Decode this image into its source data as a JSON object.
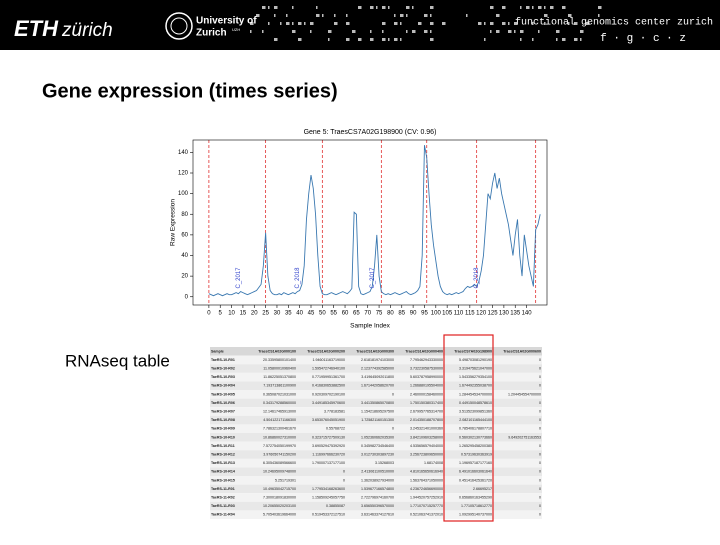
{
  "header": {
    "logo": "ETH",
    "logo_suffix": "zürich",
    "university": "University of",
    "university2": "Zurich",
    "university_sup": "UZH",
    "center": "functional genomics center zurich",
    "center_short": "f · g · c · z"
  },
  "title": "Gene expression (times series)",
  "chart_data": {
    "type": "line",
    "title": "Gene 5: TraesCS7A02G198900 (CV: 0.96)",
    "x_label": "Sample Index",
    "y_label": "Raw Expression",
    "color": "#3a78b0",
    "vline_color": "#e03030",
    "values": [
      3,
      2,
      1,
      2,
      3,
      2,
      1,
      2,
      3,
      2,
      2,
      3,
      4,
      3,
      5,
      4,
      3,
      2,
      3,
      4,
      5,
      6,
      9,
      12,
      30,
      62,
      20,
      6,
      3,
      2,
      2,
      3,
      2,
      4,
      3,
      2,
      3,
      4,
      3,
      5,
      6,
      12,
      30,
      75,
      100,
      118,
      105,
      80,
      40,
      10,
      3,
      2,
      2,
      3,
      4,
      3,
      2,
      3,
      4,
      5,
      4,
      3,
      5,
      8,
      82,
      80,
      10,
      3,
      2,
      3,
      4,
      5,
      10,
      30,
      60,
      20,
      5,
      3,
      2,
      3,
      2,
      3,
      4,
      3,
      2,
      3,
      4,
      5,
      3,
      2,
      3,
      4,
      6,
      10,
      40,
      147,
      135,
      100,
      70,
      50,
      35,
      20,
      10,
      5,
      3,
      2,
      3,
      2,
      3,
      4,
      3,
      4,
      5,
      8,
      10,
      9,
      10,
      12,
      10,
      15,
      25,
      40,
      70,
      100,
      95,
      110,
      120,
      105,
      115,
      100,
      90,
      80,
      70,
      55,
      40,
      60,
      75,
      40,
      20,
      60,
      45,
      30,
      20,
      10,
      65,
      70,
      80
    ],
    "xlim": [
      -7,
      149
    ],
    "ylim": [
      -8,
      152
    ],
    "xticks": [
      0,
      5,
      10,
      15,
      20,
      25,
      30,
      35,
      40,
      45,
      50,
      55,
      60,
      65,
      70,
      75,
      80,
      85,
      90,
      95,
      100,
      105,
      110,
      115,
      120,
      125,
      130,
      135,
      140
    ],
    "yticks": [
      0,
      20,
      40,
      60,
      80,
      100,
      120,
      140
    ],
    "vlines": [
      0,
      25,
      50,
      76,
      96,
      118,
      144
    ],
    "annotations": [
      {
        "text": "C_2017",
        "x": 13,
        "y": 8
      },
      {
        "text": "C_2018",
        "x": 39,
        "y": 8
      },
      {
        "text": "C_2017",
        "x": 72,
        "y": 8
      },
      {
        "text": "C_2018",
        "x": 118,
        "y": 8
      }
    ]
  },
  "table_label": "RNAseq table",
  "table": {
    "header": [
      "Sample",
      "TraesCS1A02G000100",
      "TraesCS1A02G000200",
      "TraesCS1A02G000300",
      "TraesCS1A02G000400",
      "TraesCS7A02G198900",
      "TraesCS1A02G000600"
    ],
    "rows": [
      [
        "TaeRS-10-R01",
        "20.33595800101400",
        "1.946011163719000",
        "2.618181974103000",
        "7.795462943330000",
        "5.498703081290190",
        "0"
      ],
      [
        "TaeRS-10-R02",
        "11.05800010960400",
        "1.595472746940100",
        "2.123774392585000",
        "3.732230587530000",
        "3.319475621047000",
        "0"
      ],
      [
        "TaeRS-10-R03",
        "11.86225051370800",
        "0.771959951361700",
        "3.419645092011800",
        "5.603787958990000",
        "1.543356279354100",
        "0"
      ],
      [
        "TaeRS-10-R04",
        "7.193713861100900",
        "0.416830653882500",
        "1.671442058620700",
        "1.266880195504000",
        "1.674492355038700",
        "0"
      ],
      [
        "TaeRS-10-R05",
        "0.365087021031000",
        "0.920309702190100",
        "0",
        "2.460000158460000",
        "1.284454534700000",
        "1.204454554700000"
      ],
      [
        "TaeRS-10-R06",
        "0.343179288560000",
        "3.449185345970600",
        "3.441350865070800",
        "1.750150380317400",
        "0.449150048578610",
        "0"
      ],
      [
        "TaeRS-10-R07",
        "12.14617465913000",
        "3.778183581",
        "1.154218695297500",
        "2.679957765314700",
        "3.513523099851360",
        "0"
      ],
      [
        "TaeRS-10-R08",
        "4.504122171166300",
        "3.653076045051900",
        "1.725821160151300",
        "2.014350188707800",
        "2.082101165444100",
        "0"
      ],
      [
        "TaeRS-10-R09",
        "7.786321300461670",
        "0.55768722",
        "0",
        "3.245321401000360",
        "0.785406178807710",
        "0"
      ],
      [
        "TaeRS-10-R10",
        "10.86860027310000",
        "0.323715727509130",
        "1.052360662035300",
        "3.842109603258000",
        "0.560302130773660",
        "9.649202751163553"
      ],
      [
        "TaeRS-10-R11",
        "7.572754050199970",
        "3.690529475392920",
        "0.345982734546400",
        "4.535656579404000",
        "1.265295458200380",
        "0"
      ],
      [
        "TaeRS-10-R12",
        "3.976050741150200",
        "1.116997666230720",
        "3.012730303897230",
        "3.256723809650000",
        "0.57319630363919",
        "0"
      ],
      [
        "TaeRS-10-R13",
        "6.305436089566600",
        "1.790007137177100",
        "3.15268003",
        "1.68174008",
        "1.196957187177160",
        "0"
      ],
      [
        "TaeRS-10-R14",
        "10.24695009748000",
        "0",
        "2.413061100510000",
        "4.810165650616940",
        "6.491016603061640",
        "0"
      ],
      [
        "TaeRS-10-R15",
        "5.251719301",
        "0",
        "1.362038927934000",
        "1.563764371050000",
        "0.451416425361720",
        "0"
      ],
      [
        "TaeRS-11-R01",
        "10.49635042715700",
        "1.779534168263600",
        "1.539677166574800",
        "4.236724656690000",
        "2.66695217",
        "0"
      ],
      [
        "TaeRS-11-R02",
        "7.300018091830000",
        "1.158509245057750",
        "2.722796974160700",
        "1.944520757252910",
        "0.656860163455290",
        "0"
      ],
      [
        "TaeRS-11-R03",
        "10.20655020203100",
        "0.38855087",
        "3.656550396570000",
        "1.771070715257770",
        "1.77105718612770",
        "0"
      ],
      [
        "TaeRS-11-R04",
        "5.705403619664000",
        "0.519453372127510",
        "3.631463374127610",
        "0.521063741372010",
        "1.092995140737000",
        "0"
      ]
    ],
    "highlight_column": 5
  }
}
